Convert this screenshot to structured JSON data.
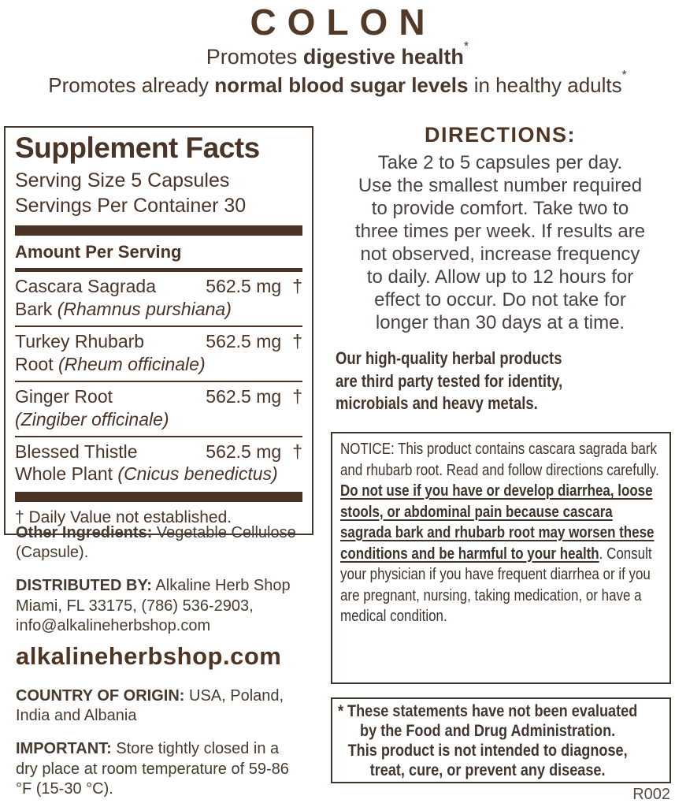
{
  "header": {
    "title": "COLON",
    "claim1_prefix": "Promotes ",
    "claim1_bold": "digestive health",
    "claim1_sup": "*",
    "claim2_prefix": "Promotes already ",
    "claim2_bold": "normal blood sugar levels",
    "claim2_suffix": " in healthy adults",
    "claim2_sup": "*"
  },
  "supplement_facts": {
    "title": "Supplement Facts",
    "serving_size": "Serving Size 5 Capsules",
    "servings_per_container": "Servings Per Container 30",
    "amount_header": "Amount Per Serving",
    "rows": [
      {
        "name": "Cascara Sagrada",
        "name2": "Bark ",
        "species": "(Rhamnus purshiana)",
        "amount": "562.5 mg",
        "dv": "†"
      },
      {
        "name": "Turkey Rhubarb",
        "name2": "Root ",
        "species": "(Rheum officinale)",
        "amount": "562.5 mg",
        "dv": "†"
      },
      {
        "name": "Ginger Root",
        "name2": "",
        "species": "(Zingiber officinale)",
        "amount": "562.5 mg",
        "dv": "†"
      },
      {
        "name": "Blessed Thistle",
        "name2": "Whole Plant ",
        "species": "(Cnicus benedictus)",
        "amount": "562.5 mg",
        "dv": "†"
      }
    ],
    "footnote": "† Daily Value not established."
  },
  "left_info": {
    "other_ingredients_label": "Other Ingredients:",
    "other_ingredients_text": " Vegetable Cellulose (Capsule).",
    "distributed_label": "DISTRIBUTED BY:",
    "distributed_text": " Alkaline Herb Shop Miami, FL 33175, (786) 536-2903, info@alkalineherbshop.com",
    "website": "alkalineherbshop.com",
    "origin_label": "COUNTRY OF ORIGIN:",
    "origin_text": " USA, Poland, India and Albania",
    "important_label": "IMPORTANT:",
    "important_text": " Store tightly closed in a dry place at room temperature of 59-86 °F (15-30 °C)."
  },
  "directions": {
    "heading": "DIRECTIONS:",
    "body": "Take 2 to 5 capsules per day.\nUse the smallest number required\nto provide comfort. Take two to\nthree times per week. If results are\nnot observed, increase frequency\nto daily. Allow up to 12 hours for\neffect to occur. Do not take for\nlonger than 30 days at a time."
  },
  "quality_statement": "Our high-quality herbal products\nare third party tested for identity,\nmicrobials and heavy metals.",
  "notice": {
    "prefix": "NOTICE: This product contains cascara sagrada bark and rhubarb root. Read and follow directions carefully. ",
    "underlined": "Do not use if you have or develop diarrhea, loose stools, or abdominal pain because cascara sagrada bark and rhubarb root may worsen these conditions and be harmful to your health",
    "suffix": ". Consult your physician if you have frequent diarrhea or if you are pregnant, nursing, taking medication, or have a medical condition."
  },
  "disclaimer": "* These statements have not been evaluated\nby the Food and Drug Administration.\nThis product is not intended to diagnose,\ntreat, cure, or prevent any disease.",
  "footer": {
    "code": "R002"
  },
  "colors": {
    "brand_brown": "#523a29",
    "panel_ink": "#4a3427",
    "notice_ink": "#3f342c",
    "body_ink": "#4b4145",
    "code_ink": "#554c44"
  }
}
